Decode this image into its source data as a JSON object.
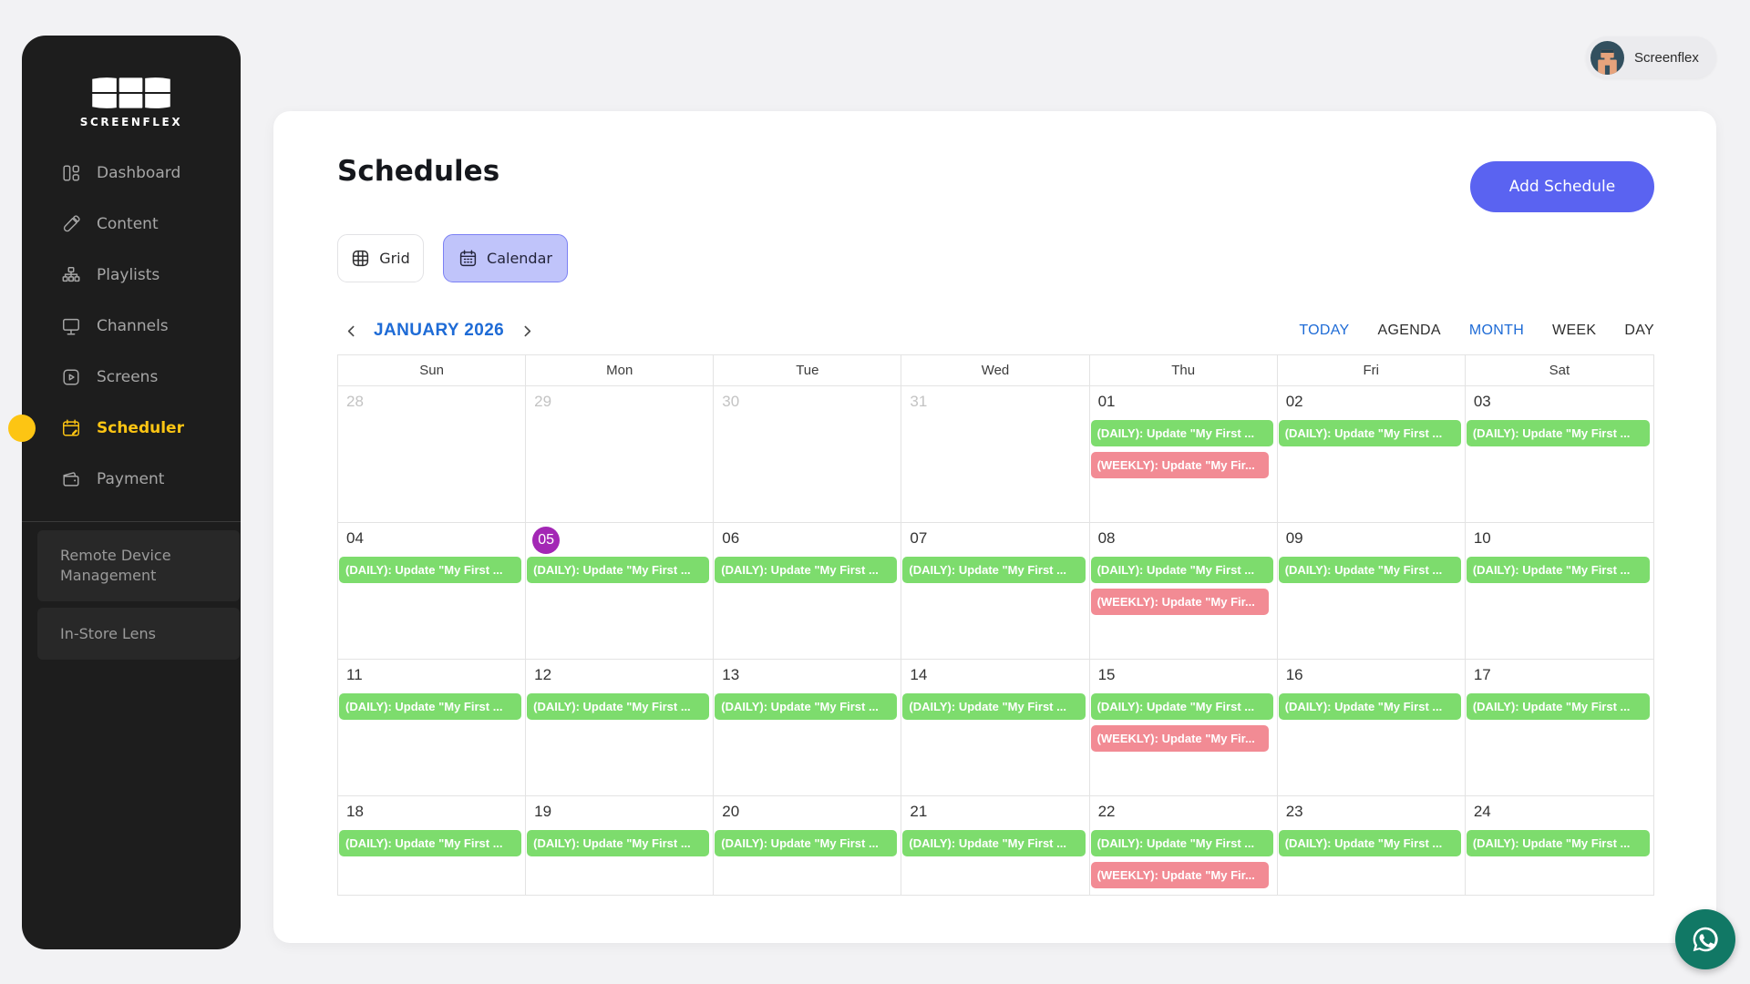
{
  "colors": {
    "accent_yellow": "#fdc513",
    "accent_blue": "#1e6bd6",
    "accent_indigo": "#5a63f1",
    "chip_green": "#7ddc6d",
    "chip_pink": "#f28b94",
    "today_purple": "#a327b5"
  },
  "sidebar": {
    "brand": "SCREENFLEX",
    "items": [
      {
        "label": "Dashboard",
        "icon": "dashboard",
        "active": false
      },
      {
        "label": "Content",
        "icon": "content",
        "active": false
      },
      {
        "label": "Playlists",
        "icon": "playlists",
        "active": false
      },
      {
        "label": "Channels",
        "icon": "channels",
        "active": false
      },
      {
        "label": "Screens",
        "icon": "screens",
        "active": false
      },
      {
        "label": "Scheduler",
        "icon": "scheduler",
        "active": true
      },
      {
        "label": "Payment",
        "icon": "payment",
        "active": false
      }
    ],
    "sections": [
      {
        "label": "Remote Device Management"
      },
      {
        "label": "In-Store Lens"
      }
    ]
  },
  "header": {
    "user_name": "Screenflex"
  },
  "main": {
    "title": "Schedules",
    "add_button": "Add Schedule",
    "view_toggle": {
      "grid": "Grid",
      "calendar": "Calendar"
    },
    "calendar": {
      "month_label": "JANUARY 2026",
      "views": [
        {
          "label": "TODAY",
          "active": true
        },
        {
          "label": "AGENDA",
          "active": false
        },
        {
          "label": "MONTH",
          "active": true
        },
        {
          "label": "WEEK",
          "active": false
        },
        {
          "label": "DAY",
          "active": false
        }
      ],
      "day_headers": [
        "Sun",
        "Mon",
        "Tue",
        "Wed",
        "Thu",
        "Fri",
        "Sat"
      ],
      "event_labels": {
        "daily": "(DAILY): Update \"My First ...",
        "weekly": "(WEEKLY): Update \"My Fir..."
      },
      "weeks": [
        [
          {
            "date": "28",
            "muted": true,
            "events": []
          },
          {
            "date": "29",
            "muted": true,
            "events": []
          },
          {
            "date": "30",
            "muted": true,
            "events": []
          },
          {
            "date": "31",
            "muted": true,
            "events": []
          },
          {
            "date": "01",
            "events": [
              "daily",
              "weekly"
            ]
          },
          {
            "date": "02",
            "events": [
              "daily"
            ]
          },
          {
            "date": "03",
            "events": [
              "daily"
            ]
          }
        ],
        [
          {
            "date": "04",
            "events": [
              "daily"
            ]
          },
          {
            "date": "05",
            "today": true,
            "events": [
              "daily"
            ]
          },
          {
            "date": "06",
            "events": [
              "daily"
            ]
          },
          {
            "date": "07",
            "events": [
              "daily"
            ]
          },
          {
            "date": "08",
            "events": [
              "daily",
              "weekly"
            ]
          },
          {
            "date": "09",
            "events": [
              "daily"
            ]
          },
          {
            "date": "10",
            "events": [
              "daily"
            ]
          }
        ],
        [
          {
            "date": "11",
            "events": [
              "daily"
            ]
          },
          {
            "date": "12",
            "events": [
              "daily"
            ]
          },
          {
            "date": "13",
            "events": [
              "daily"
            ]
          },
          {
            "date": "14",
            "events": [
              "daily"
            ]
          },
          {
            "date": "15",
            "events": [
              "daily",
              "weekly"
            ]
          },
          {
            "date": "16",
            "events": [
              "daily"
            ]
          },
          {
            "date": "17",
            "events": [
              "daily"
            ]
          }
        ],
        [
          {
            "date": "18",
            "events": [
              "daily"
            ]
          },
          {
            "date": "19",
            "events": [
              "daily"
            ]
          },
          {
            "date": "20",
            "events": [
              "daily"
            ]
          },
          {
            "date": "21",
            "events": [
              "daily"
            ]
          },
          {
            "date": "22",
            "events": [
              "daily",
              "weekly"
            ]
          },
          {
            "date": "23",
            "events": [
              "daily"
            ]
          },
          {
            "date": "24",
            "events": [
              "daily"
            ]
          }
        ]
      ]
    }
  }
}
